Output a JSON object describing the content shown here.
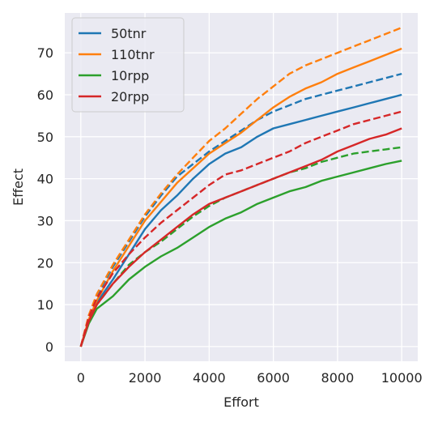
{
  "chart_data": {
    "type": "line",
    "title": "",
    "xlabel": "Effort",
    "ylabel": "Effect",
    "xlim": [
      -500,
      10500
    ],
    "ylim": [
      -3.5,
      79.5
    ],
    "xticks": [
      0,
      2000,
      4000,
      6000,
      8000,
      10000
    ],
    "yticks": [
      0,
      10,
      20,
      30,
      40,
      50,
      60,
      70
    ],
    "grid": true,
    "legend_position": "top-left",
    "series": [
      {
        "name": "50tnr",
        "color": "#1f77b4",
        "style": "solid",
        "x": [
          0,
          250,
          500,
          1000,
          1500,
          2000,
          2500,
          3000,
          3500,
          4000,
          4500,
          5000,
          5500,
          6000,
          6500,
          7000,
          7500,
          8000,
          8500,
          9000,
          9500,
          10000
        ],
        "y": [
          0,
          6,
          10.5,
          16,
          22,
          28,
          32.5,
          36,
          40,
          43.5,
          46,
          47.5,
          50,
          52,
          53,
          54,
          55,
          56,
          57,
          58,
          59,
          60
        ]
      },
      {
        "name": "",
        "color": "#1f77b4",
        "style": "dashed",
        "x": [
          0,
          250,
          500,
          1000,
          1500,
          2000,
          2500,
          3000,
          3500,
          4000,
          4500,
          5000,
          5500,
          6000,
          6500,
          7000,
          7500,
          8000,
          8500,
          9000,
          9500,
          10000
        ],
        "y": [
          0,
          7,
          12,
          19,
          25,
          31,
          36,
          40.5,
          43.5,
          46.5,
          49,
          51.5,
          54,
          56,
          57.5,
          59,
          60,
          61,
          62,
          63,
          64,
          65
        ]
      },
      {
        "name": "110tnr",
        "color": "#ff7f0e",
        "style": "solid",
        "x": [
          0,
          250,
          500,
          1000,
          1500,
          2000,
          2500,
          3000,
          3500,
          4000,
          4500,
          5000,
          5500,
          6000,
          6500,
          7000,
          7500,
          8000,
          8500,
          9000,
          9500,
          10000
        ],
        "y": [
          0,
          6.5,
          11,
          18,
          24,
          30,
          34.5,
          39,
          42.5,
          46,
          48.5,
          51,
          54,
          57,
          59.5,
          61.5,
          63,
          65,
          66.5,
          68,
          69.5,
          71
        ]
      },
      {
        "name": "",
        "color": "#ff7f0e",
        "style": "dashed",
        "x": [
          0,
          250,
          500,
          1000,
          1500,
          2000,
          2500,
          3000,
          3500,
          4000,
          4500,
          5000,
          5500,
          6000,
          6500,
          7000,
          7500,
          8000,
          8500,
          9000,
          9500,
          10000
        ],
        "y": [
          0,
          7.5,
          12.5,
          19.5,
          25.5,
          31.5,
          36.5,
          41,
          45,
          49,
          52,
          55.5,
          59,
          62,
          65,
          67,
          68.5,
          70,
          71.5,
          73,
          74.5,
          76
        ]
      },
      {
        "name": "10rpp",
        "color": "#2ca02c",
        "style": "solid",
        "x": [
          0,
          250,
          500,
          1000,
          1500,
          2000,
          2500,
          3000,
          3500,
          4000,
          4500,
          5000,
          5500,
          6000,
          6500,
          7000,
          7500,
          8000,
          8500,
          9000,
          9500,
          10000
        ],
        "y": [
          0,
          5.5,
          9,
          12,
          16,
          19,
          21.5,
          23.5,
          26,
          28.5,
          30.5,
          32,
          34,
          35.5,
          37,
          38,
          39.5,
          40.5,
          41.5,
          42.5,
          43.5,
          44.3
        ]
      },
      {
        "name": "",
        "color": "#2ca02c",
        "style": "dashed",
        "x": [
          0,
          250,
          500,
          1000,
          1500,
          2000,
          2500,
          3000,
          3500,
          4000,
          4500,
          5000,
          5500,
          6000,
          6500,
          7000,
          7500,
          8000,
          8500,
          9000,
          9500,
          10000
        ],
        "y": [
          0,
          6,
          10,
          15,
          19.5,
          22.5,
          25,
          28,
          31,
          33.5,
          35.5,
          37,
          38.5,
          40,
          41.5,
          42.5,
          44,
          45,
          46,
          46.5,
          47,
          47.5
        ]
      },
      {
        "name": "20rpp",
        "color": "#d62728",
        "style": "solid",
        "x": [
          0,
          250,
          500,
          1000,
          1500,
          2000,
          2500,
          3000,
          3500,
          4000,
          4500,
          5000,
          5500,
          6000,
          6500,
          7000,
          7500,
          8000,
          8500,
          9000,
          9500,
          10000
        ],
        "y": [
          0,
          6,
          10,
          15,
          19,
          22.5,
          25.5,
          28.5,
          31.5,
          34,
          35.5,
          37,
          38.5,
          40,
          41.5,
          43,
          44.5,
          46.5,
          48,
          49.5,
          50.5,
          52
        ]
      },
      {
        "name": "",
        "color": "#d62728",
        "style": "dashed",
        "x": [
          0,
          250,
          500,
          1000,
          1500,
          2000,
          2500,
          3000,
          3500,
          4000,
          4500,
          5000,
          5500,
          6000,
          6500,
          7000,
          7500,
          8000,
          8500,
          9000,
          9500,
          10000
        ],
        "y": [
          0,
          7,
          11.5,
          17.5,
          22,
          26,
          29.5,
          32.5,
          35.5,
          38.5,
          41,
          42,
          43.5,
          45,
          46.5,
          48.5,
          50,
          51.5,
          53,
          54,
          55,
          56
        ]
      }
    ]
  }
}
